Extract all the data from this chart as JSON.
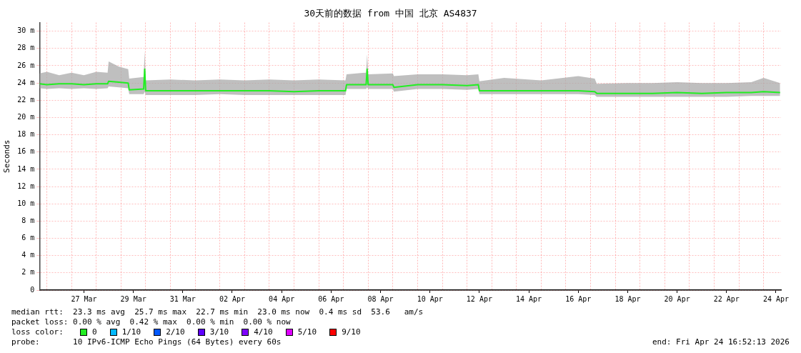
{
  "chart_data": {
    "type": "line",
    "title": "30天前的数据 from 中国 北京 AS4837",
    "ylabel": "Seconds",
    "x": [
      "2026-03-25T17:00",
      "2026-03-26T00:00",
      "2026-03-26T12:00",
      "2026-03-27T00:00",
      "2026-03-27T12:00",
      "2026-03-28T00:00",
      "2026-03-28T11:00",
      "2026-03-28T12:00",
      "2026-03-28T22:00",
      "2026-03-29T07:00",
      "2026-03-29T08:00",
      "2026-03-29T22:00",
      "2026-03-29T23:00",
      "2026-03-30T00:00",
      "2026-03-31T00:00",
      "2026-04-01T00:00",
      "2026-04-02T00:00",
      "2026-04-03T00:00",
      "2026-04-04T00:00",
      "2026-04-05T00:00",
      "2026-04-06T00:00",
      "2026-04-07T02:00",
      "2026-04-07T03:00",
      "2026-04-07T22:00",
      "2026-04-07T23:00",
      "2026-04-08T00:00",
      "2026-04-09T00:00",
      "2026-04-09T01:00",
      "2026-04-10T00:00",
      "2026-04-11T00:00",
      "2026-04-12T00:00",
      "2026-04-12T11:00",
      "2026-04-12T12:00",
      "2026-04-13T12:00",
      "2026-04-15T00:00",
      "2026-04-16T12:00",
      "2026-04-17T04:00",
      "2026-04-17T06:00",
      "2026-04-18T12:00",
      "2026-04-19T12:00",
      "2026-04-20T12:00",
      "2026-04-21T12:00",
      "2026-04-22T12:00",
      "2026-04-23T12:00",
      "2026-04-24T00:00",
      "2026-04-24T16:00"
    ],
    "series": [
      {
        "name": "0",
        "color": "#22ee22",
        "values": [
          23.9,
          23.8,
          23.9,
          23.9,
          23.8,
          23.9,
          23.9,
          24.2,
          24.1,
          24.0,
          23.2,
          23.3,
          25.6,
          23.1,
          23.1,
          23.1,
          23.1,
          23.1,
          23.1,
          23.0,
          23.1,
          23.1,
          23.8,
          23.8,
          25.6,
          23.8,
          23.8,
          23.5,
          23.8,
          23.8,
          23.7,
          23.8,
          23.1,
          23.1,
          23.1,
          23.1,
          23.0,
          22.8,
          22.8,
          22.8,
          22.9,
          22.8,
          22.9,
          22.9,
          23.0,
          22.9
        ],
        "lower": [
          23.4,
          23.3,
          23.4,
          23.3,
          23.4,
          23.3,
          23.4,
          23.6,
          23.5,
          23.4,
          22.7,
          22.7,
          23.0,
          22.6,
          22.6,
          22.6,
          22.7,
          22.6,
          22.6,
          22.6,
          22.6,
          22.6,
          23.3,
          23.3,
          23.5,
          23.3,
          23.3,
          23.0,
          23.3,
          23.3,
          23.2,
          23.3,
          22.7,
          22.7,
          22.7,
          22.7,
          22.6,
          22.4,
          22.4,
          22.4,
          22.4,
          22.4,
          22.4,
          22.5,
          22.5,
          22.5
        ],
        "upper": [
          25.1,
          25.3,
          24.9,
          25.2,
          24.9,
          25.3,
          25.2,
          26.5,
          25.9,
          25.6,
          24.5,
          24.7,
          27.7,
          24.3,
          24.4,
          24.3,
          24.4,
          24.3,
          24.4,
          24.3,
          24.4,
          24.3,
          25.0,
          25.2,
          27.3,
          25.0,
          25.1,
          24.8,
          25.0,
          25.0,
          24.9,
          25.0,
          24.2,
          24.6,
          24.3,
          24.8,
          24.5,
          23.9,
          24.0,
          24.0,
          24.1,
          24.0,
          24.0,
          24.1,
          24.6,
          24.0
        ]
      },
      {
        "name": "1/10",
        "color": "#00b8ff",
        "values": [
          null,
          null,
          null,
          null,
          null,
          null,
          null,
          null,
          null,
          null,
          null,
          null,
          null,
          null,
          null,
          null,
          null,
          null,
          null,
          null,
          null,
          null,
          null,
          null,
          null,
          null,
          null,
          null,
          null,
          null,
          null,
          null,
          null,
          null,
          null,
          null,
          null,
          null,
          null,
          null,
          null,
          null,
          null,
          null,
          null,
          null
        ]
      },
      {
        "name": "2/10",
        "color": "#0059ff",
        "values": [
          null,
          null,
          null,
          null,
          null,
          null,
          null,
          null,
          null,
          null,
          null,
          null,
          null,
          null,
          null,
          null,
          null,
          null,
          null,
          null,
          null,
          null,
          null,
          null,
          null,
          null,
          null,
          null,
          null,
          null,
          null,
          null,
          null,
          null,
          null,
          null,
          null,
          null,
          null,
          null,
          null,
          null,
          null,
          null,
          null,
          null
        ]
      },
      {
        "name": "3/10",
        "color": "#5e00ff",
        "values": [
          null,
          null,
          null,
          null,
          null,
          null,
          null,
          null,
          null,
          null,
          null,
          null,
          null,
          null,
          null,
          null,
          null,
          null,
          null,
          null,
          null,
          null,
          null,
          null,
          null,
          null,
          null,
          null,
          null,
          null,
          null,
          null,
          null,
          null,
          null,
          null,
          null,
          null,
          null,
          null,
          null,
          null,
          null,
          null,
          null,
          null
        ]
      },
      {
        "name": "4/10",
        "color": "#7e00ff",
        "values": [
          null,
          null,
          null,
          null,
          null,
          null,
          null,
          null,
          null,
          null,
          null,
          null,
          null,
          null,
          null,
          null,
          null,
          null,
          null,
          null,
          null,
          null,
          null,
          null,
          null,
          null,
          null,
          null,
          null,
          null,
          null,
          null,
          null,
          null,
          null,
          null,
          null,
          null,
          null,
          null,
          null,
          null,
          null,
          null,
          null,
          null
        ]
      },
      {
        "name": "5/10",
        "color": "#dd00ff",
        "values": [
          null,
          null,
          null,
          null,
          null,
          null,
          null,
          null,
          null,
          null,
          null,
          null,
          null,
          null,
          null,
          null,
          null,
          null,
          null,
          null,
          null,
          null,
          null,
          null,
          null,
          null,
          null,
          null,
          null,
          null,
          null,
          null,
          null,
          null,
          null,
          null,
          null,
          null,
          null,
          null,
          null,
          null,
          null,
          null,
          null,
          null
        ]
      },
      {
        "name": "9/10",
        "color": "#ff0000",
        "values": [
          null,
          null,
          null,
          null,
          null,
          null,
          null,
          null,
          null,
          null,
          null,
          null,
          null,
          null,
          null,
          null,
          null,
          null,
          null,
          null,
          null,
          null,
          null,
          null,
          null,
          null,
          null,
          null,
          null,
          null,
          null,
          null,
          null,
          null,
          null,
          null,
          null,
          null,
          null,
          null,
          null,
          null,
          null,
          null,
          null,
          null
        ]
      }
    ],
    "legend_title": "loss color:",
    "legend": "bottom",
    "grid": true,
    "marker": "none",
    "line_style": "solid",
    "xlim": [
      "2026-03-25T16:52",
      "2026-04-24T16:52"
    ],
    "xticks": [
      {
        "value": "2026-03-26T00:00",
        "label": null
      },
      {
        "value": "2026-03-27T00:00",
        "label": null
      },
      {
        "value": "2026-03-27T12:00",
        "label": "27 Mar"
      },
      {
        "value": "2026-03-28T00:00",
        "label": null
      },
      {
        "value": "2026-03-29T00:00",
        "label": null
      },
      {
        "value": "2026-03-29T12:00",
        "label": "29 Mar"
      },
      {
        "value": "2026-03-30T00:00",
        "label": null
      },
      {
        "value": "2026-03-31T00:00",
        "label": null
      },
      {
        "value": "2026-03-31T12:00",
        "label": "31 Mar"
      },
      {
        "value": "2026-04-01T00:00",
        "label": null
      },
      {
        "value": "2026-04-02T00:00",
        "label": null
      },
      {
        "value": "2026-04-02T12:00",
        "label": "02 Apr"
      },
      {
        "value": "2026-04-03T00:00",
        "label": null
      },
      {
        "value": "2026-04-04T00:00",
        "label": null
      },
      {
        "value": "2026-04-04T12:00",
        "label": "04 Apr"
      },
      {
        "value": "2026-04-05T00:00",
        "label": null
      },
      {
        "value": "2026-04-06T00:00",
        "label": null
      },
      {
        "value": "2026-04-06T12:00",
        "label": "06 Apr"
      },
      {
        "value": "2026-04-07T00:00",
        "label": null
      },
      {
        "value": "2026-04-08T00:00",
        "label": null
      },
      {
        "value": "2026-04-08T12:00",
        "label": "08 Apr"
      },
      {
        "value": "2026-04-09T00:00",
        "label": null
      },
      {
        "value": "2026-04-10T00:00",
        "label": null
      },
      {
        "value": "2026-04-10T12:00",
        "label": "10 Apr"
      },
      {
        "value": "2026-04-11T00:00",
        "label": null
      },
      {
        "value": "2026-04-12T00:00",
        "label": null
      },
      {
        "value": "2026-04-12T12:00",
        "label": "12 Apr"
      },
      {
        "value": "2026-04-13T00:00",
        "label": null
      },
      {
        "value": "2026-04-14T00:00",
        "label": null
      },
      {
        "value": "2026-04-14T12:00",
        "label": "14 Apr"
      },
      {
        "value": "2026-04-15T00:00",
        "label": null
      },
      {
        "value": "2026-04-16T00:00",
        "label": null
      },
      {
        "value": "2026-04-16T12:00",
        "label": "16 Apr"
      },
      {
        "value": "2026-04-17T00:00",
        "label": null
      },
      {
        "value": "2026-04-18T00:00",
        "label": null
      },
      {
        "value": "2026-04-18T12:00",
        "label": "18 Apr"
      },
      {
        "value": "2026-04-19T00:00",
        "label": null
      },
      {
        "value": "2026-04-20T00:00",
        "label": null
      },
      {
        "value": "2026-04-20T12:00",
        "label": "20 Apr"
      },
      {
        "value": "2026-04-21T00:00",
        "label": null
      },
      {
        "value": "2026-04-22T00:00",
        "label": null
      },
      {
        "value": "2026-04-22T12:00",
        "label": "22 Apr"
      },
      {
        "value": "2026-04-23T00:00",
        "label": null
      },
      {
        "value": "2026-04-24T00:00",
        "label": null
      },
      {
        "value": "2026-04-24T12:00",
        "label": "24 Apr"
      }
    ],
    "ylim": [
      0,
      31
    ],
    "yticks": [
      0,
      {
        "value": 2,
        "label": "2 m"
      },
      {
        "value": 4,
        "label": "4 m"
      },
      {
        "value": 6,
        "label": "6 m"
      },
      {
        "value": 8,
        "label": "8 m"
      },
      {
        "value": 10,
        "label": "10 m"
      },
      {
        "value": 12,
        "label": "12 m"
      },
      {
        "value": 14,
        "label": "14 m"
      },
      {
        "value": 16,
        "label": "16 m"
      },
      {
        "value": 18,
        "label": "18 m"
      },
      {
        "value": 20,
        "label": "20 m"
      },
      {
        "value": 22,
        "label": "22 m"
      },
      {
        "value": 24,
        "label": "24 m"
      },
      {
        "value": 26,
        "label": "26 m"
      },
      {
        "value": 28,
        "label": "28 m"
      },
      {
        "value": 30,
        "label": "30 m"
      }
    ],
    "annotations": [
      "median rtt:  23.3 ms avg  25.7 ms max  22.7 ms min  23.0 ms now  0.4 ms sd  53.6   am/s",
      "packet loss: 0.00 % avg  0.42 % max  0.00 % min  0.00 % now",
      "probe:       10 IPv6-ICMP Echo Pings (64 Bytes) every 60s",
      "end: Fri Apr 24 16:52:13 2026"
    ]
  }
}
